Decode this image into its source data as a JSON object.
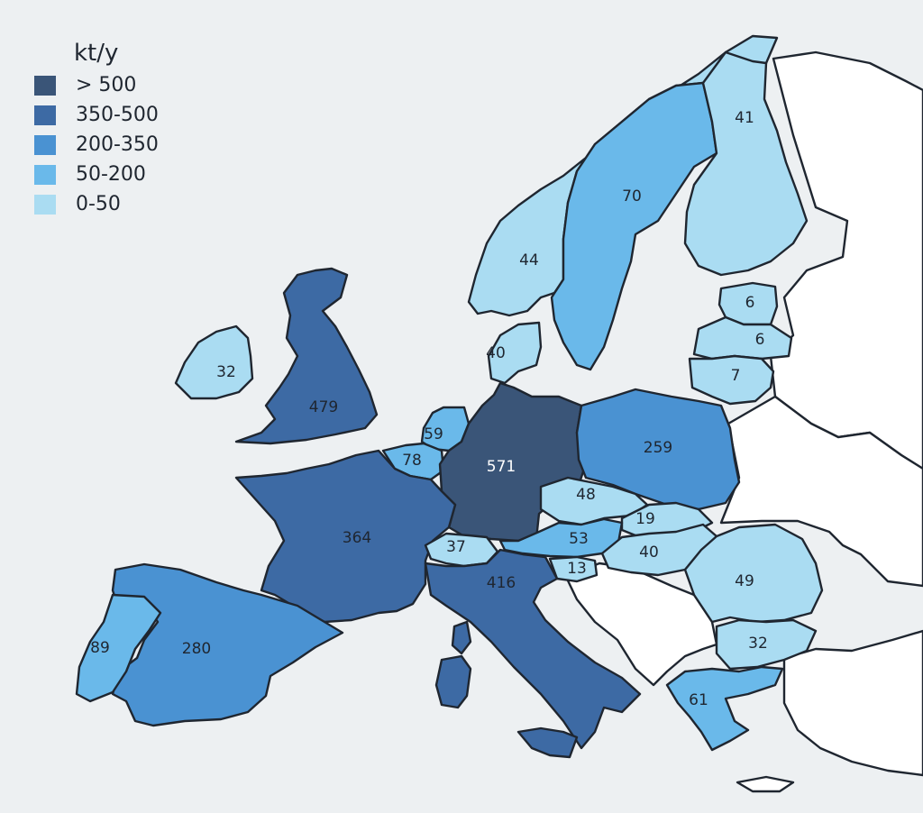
{
  "legend": {
    "title": "kt/y",
    "items": [
      {
        "label": "> 500",
        "color": "#3a5578"
      },
      {
        "label": "350-500",
        "color": "#3d6aa4"
      },
      {
        "label": "200-350",
        "color": "#4a92d2"
      },
      {
        "label": "50-200",
        "color": "#6ab9ea"
      },
      {
        "label": "0-50",
        "color": "#aadcf2"
      }
    ]
  },
  "regions": [
    {
      "name": "germany",
      "value": "571",
      "color": "#3a5578"
    },
    {
      "name": "uk",
      "value": "479",
      "color": "#3d6aa4"
    },
    {
      "name": "italy",
      "value": "416",
      "color": "#3d6aa4"
    },
    {
      "name": "france",
      "value": "364",
      "color": "#3d6aa4"
    },
    {
      "name": "spain",
      "value": "280",
      "color": "#4a92d2"
    },
    {
      "name": "poland",
      "value": "259",
      "color": "#4a92d2"
    },
    {
      "name": "portugal",
      "value": "89",
      "color": "#6ab9ea"
    },
    {
      "name": "belgium",
      "value": "78",
      "color": "#6ab9ea"
    },
    {
      "name": "sweden",
      "value": "70",
      "color": "#6ab9ea"
    },
    {
      "name": "greece",
      "value": "61",
      "color": "#6ab9ea"
    },
    {
      "name": "netherlands",
      "value": "59",
      "color": "#6ab9ea"
    },
    {
      "name": "austria",
      "value": "53",
      "color": "#6ab9ea"
    },
    {
      "name": "romania",
      "value": "49",
      "color": "#aadcf2"
    },
    {
      "name": "czechia",
      "value": "48",
      "color": "#aadcf2"
    },
    {
      "name": "norway",
      "value": "44",
      "color": "#aadcf2"
    },
    {
      "name": "finland",
      "value": "41",
      "color": "#aadcf2"
    },
    {
      "name": "denmark",
      "value": "40",
      "color": "#aadcf2"
    },
    {
      "name": "hungary",
      "value": "40",
      "color": "#aadcf2"
    },
    {
      "name": "switzerland",
      "value": "37",
      "color": "#aadcf2"
    },
    {
      "name": "ireland",
      "value": "32",
      "color": "#aadcf2"
    },
    {
      "name": "bulgaria",
      "value": "32",
      "color": "#aadcf2"
    },
    {
      "name": "slovakia",
      "value": "19",
      "color": "#aadcf2"
    },
    {
      "name": "slovenia",
      "value": "13",
      "color": "#aadcf2"
    },
    {
      "name": "lithuania",
      "value": "7",
      "color": "#aadcf2"
    },
    {
      "name": "latvia",
      "value": "6",
      "color": "#aadcf2"
    },
    {
      "name": "estonia",
      "value": "6",
      "color": "#aadcf2"
    }
  ]
}
